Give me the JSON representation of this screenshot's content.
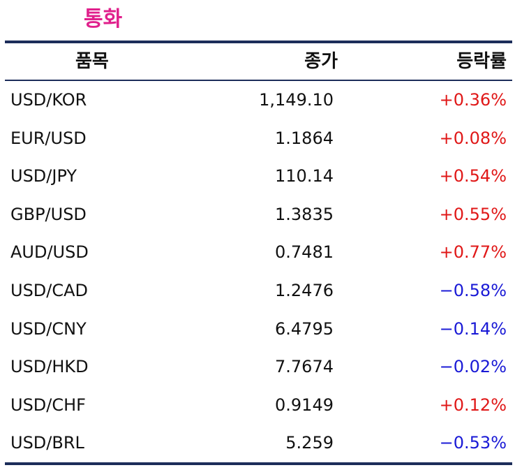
{
  "title": "통화",
  "table": {
    "headers": {
      "item": "품목",
      "close": "종가",
      "change": "등락률"
    },
    "rows": [
      {
        "item": "USD/KOR",
        "close": "1,149.10",
        "change": "+0.36%",
        "direction": "up"
      },
      {
        "item": "EUR/USD",
        "close": "1.1864",
        "change": "+0.08%",
        "direction": "up"
      },
      {
        "item": "USD/JPY",
        "close": "110.14",
        "change": "+0.54%",
        "direction": "up"
      },
      {
        "item": "GBP/USD",
        "close": "1.3835",
        "change": "+0.55%",
        "direction": "up"
      },
      {
        "item": "AUD/USD",
        "close": "0.7481",
        "change": "+0.77%",
        "direction": "up"
      },
      {
        "item": "USD/CAD",
        "close": "1.2476",
        "change": "−0.58%",
        "direction": "down"
      },
      {
        "item": "USD/CNY",
        "close": "6.4795",
        "change": "−0.14%",
        "direction": "down"
      },
      {
        "item": "USD/HKD",
        "close": "7.7674",
        "change": "−0.02%",
        "direction": "down"
      },
      {
        "item": "USD/CHF",
        "close": "0.9149",
        "change": "+0.12%",
        "direction": "up"
      },
      {
        "item": "USD/BRL",
        "close": "5.259",
        "change": "−0.53%",
        "direction": "down"
      }
    ]
  },
  "colors": {
    "title": "#e0208c",
    "rule": "#1c2d5a",
    "up": "#e01818",
    "down": "#1a1ad6"
  }
}
